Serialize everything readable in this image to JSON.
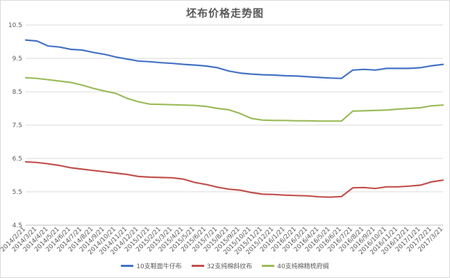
{
  "chart_data": {
    "type": "line",
    "title": "坯布价格走势图",
    "xlabel": "",
    "ylabel": "",
    "ylim": [
      4.5,
      10.5
    ],
    "yticks": [
      4.5,
      5.5,
      6.5,
      7.5,
      8.5,
      9.5,
      10.5
    ],
    "ytick_labels": [
      "4.5",
      "5.5",
      "6.5",
      "7.5",
      "8.5",
      "9.5",
      "10.5"
    ],
    "grid": "horizontal",
    "legend_position": "bottom",
    "categories": [
      "2014/2/21",
      "2014/3/21",
      "2014/4/21",
      "2014/5/21",
      "2014/6/21",
      "2014/7/21",
      "2014/8/21",
      "2014/9/21",
      "2014/10/21",
      "2014/11/21",
      "2014/12/21",
      "2015/1/21",
      "2015/2/21",
      "2015/3/21",
      "2015/4/21",
      "2015/5/21",
      "2015/6/21",
      "2015/7/21",
      "2015/8/21",
      "2015/9/21",
      "2015/10/21",
      "2015/11/21",
      "2015/12/21",
      "2016/1/21",
      "2016/2/21",
      "2016/3/21",
      "2016/4/21",
      "2016/5/21",
      "2016/6/21",
      "2016/7/21",
      "2016/8/21",
      "2016/9/21",
      "2016/10/21",
      "2016/11/21",
      "2016/12/21",
      "2017/1/21",
      "2017/2/21",
      "2017/3/21"
    ],
    "series": [
      {
        "name": "10支鞋面牛仔布",
        "color": "#4472c4",
        "values": [
          10.05,
          10.02,
          9.87,
          9.84,
          9.77,
          9.75,
          9.68,
          9.62,
          9.54,
          9.48,
          9.42,
          9.4,
          9.37,
          9.35,
          9.32,
          9.3,
          9.27,
          9.22,
          9.12,
          9.06,
          9.03,
          9.01,
          9.0,
          8.98,
          8.97,
          8.95,
          8.93,
          8.91,
          8.9,
          9.15,
          9.17,
          9.15,
          9.2,
          9.2,
          9.2,
          9.22,
          9.28,
          9.32
        ]
      },
      {
        "name": "32支纯棉斜纹布",
        "color": "#c0504d",
        "values": [
          6.4,
          6.38,
          6.34,
          6.29,
          6.22,
          6.18,
          6.14,
          6.1,
          6.06,
          6.02,
          5.96,
          5.94,
          5.93,
          5.92,
          5.88,
          5.78,
          5.72,
          5.64,
          5.58,
          5.55,
          5.48,
          5.43,
          5.42,
          5.4,
          5.39,
          5.38,
          5.35,
          5.34,
          5.36,
          5.62,
          5.63,
          5.6,
          5.65,
          5.65,
          5.67,
          5.7,
          5.8,
          5.85
        ]
      },
      {
        "name": "40支纯棉精梳府绸",
        "color": "#9bbb59",
        "values": [
          8.92,
          8.9,
          8.86,
          8.82,
          8.78,
          8.7,
          8.6,
          8.52,
          8.45,
          8.3,
          8.2,
          8.13,
          8.12,
          8.11,
          8.1,
          8.09,
          8.06,
          8.0,
          7.96,
          7.85,
          7.7,
          7.65,
          7.64,
          7.64,
          7.63,
          7.63,
          7.62,
          7.62,
          7.62,
          7.92,
          7.93,
          7.94,
          7.95,
          7.98,
          8.0,
          8.02,
          8.08,
          8.1
        ]
      }
    ]
  }
}
